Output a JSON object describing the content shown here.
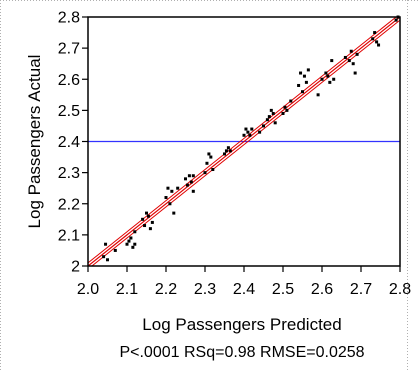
{
  "chart_data": {
    "type": "scatter",
    "title": "",
    "xlabel": "Log Passengers Predicted",
    "ylabel": "Log Passengers Actual",
    "xlim": [
      2.0,
      2.8
    ],
    "ylim": [
      2.0,
      2.8
    ],
    "x_ticks": [
      "2.0",
      "2.1",
      "2.2",
      "2.3",
      "2.4",
      "2.5",
      "2.6",
      "2.7",
      "2.8"
    ],
    "y_ticks": [
      "2",
      "2.1",
      "2.2",
      "2.3",
      "2.4",
      "2.5",
      "2.6",
      "2.7",
      "2.8"
    ],
    "stats_text": "P<.0001 RSq=0.98 RMSE=0.0258",
    "mean_line_y": 2.4,
    "fit_line": {
      "intercept": 0.0,
      "slope": 1.0
    },
    "confidence_band_halfwidth": 0.01,
    "grid": false,
    "colors": {
      "points": "#000000",
      "fit_line": "#e00000",
      "confidence_band": "#e00000",
      "mean_line": "#3333ff",
      "frame": "#000000",
      "outer_border": "#b0b0b0"
    },
    "points": [
      [
        2.04,
        2.03
      ],
      [
        2.045,
        2.07
      ],
      [
        2.05,
        2.02
      ],
      [
        2.07,
        2.05
      ],
      [
        2.1,
        2.07
      ],
      [
        2.105,
        2.08
      ],
      [
        2.11,
        2.09
      ],
      [
        2.115,
        2.06
      ],
      [
        2.12,
        2.11
      ],
      [
        2.12,
        2.07
      ],
      [
        2.14,
        2.15
      ],
      [
        2.145,
        2.13
      ],
      [
        2.15,
        2.17
      ],
      [
        2.155,
        2.16
      ],
      [
        2.16,
        2.12
      ],
      [
        2.165,
        2.14
      ],
      [
        2.2,
        2.22
      ],
      [
        2.205,
        2.25
      ],
      [
        2.21,
        2.2
      ],
      [
        2.215,
        2.24
      ],
      [
        2.22,
        2.17
      ],
      [
        2.23,
        2.25
      ],
      [
        2.25,
        2.28
      ],
      [
        2.255,
        2.26
      ],
      [
        2.26,
        2.29
      ],
      [
        2.265,
        2.27
      ],
      [
        2.27,
        2.24
      ],
      [
        2.27,
        2.29
      ],
      [
        2.3,
        2.3
      ],
      [
        2.305,
        2.33
      ],
      [
        2.31,
        2.36
      ],
      [
        2.315,
        2.35
      ],
      [
        2.32,
        2.31
      ],
      [
        2.35,
        2.36
      ],
      [
        2.355,
        2.37
      ],
      [
        2.36,
        2.38
      ],
      [
        2.365,
        2.37
      ],
      [
        2.4,
        2.42
      ],
      [
        2.405,
        2.44
      ],
      [
        2.41,
        2.43
      ],
      [
        2.415,
        2.42
      ],
      [
        2.42,
        2.44
      ],
      [
        2.44,
        2.43
      ],
      [
        2.45,
        2.45
      ],
      [
        2.46,
        2.47
      ],
      [
        2.465,
        2.48
      ],
      [
        2.47,
        2.5
      ],
      [
        2.475,
        2.49
      ],
      [
        2.48,
        2.46
      ],
      [
        2.5,
        2.49
      ],
      [
        2.505,
        2.51
      ],
      [
        2.51,
        2.5
      ],
      [
        2.52,
        2.53
      ],
      [
        2.54,
        2.58
      ],
      [
        2.545,
        2.62
      ],
      [
        2.55,
        2.56
      ],
      [
        2.555,
        2.61
      ],
      [
        2.56,
        2.59
      ],
      [
        2.565,
        2.63
      ],
      [
        2.59,
        2.55
      ],
      [
        2.6,
        2.6
      ],
      [
        2.61,
        2.62
      ],
      [
        2.615,
        2.61
      ],
      [
        2.62,
        2.59
      ],
      [
        2.625,
        2.66
      ],
      [
        2.63,
        2.6
      ],
      [
        2.66,
        2.67
      ],
      [
        2.67,
        2.66
      ],
      [
        2.675,
        2.69
      ],
      [
        2.68,
        2.65
      ],
      [
        2.685,
        2.62
      ],
      [
        2.69,
        2.68
      ],
      [
        2.73,
        2.73
      ],
      [
        2.735,
        2.75
      ],
      [
        2.74,
        2.72
      ],
      [
        2.745,
        2.71
      ],
      [
        2.79,
        2.79
      ],
      [
        2.795,
        2.8
      ]
    ]
  }
}
